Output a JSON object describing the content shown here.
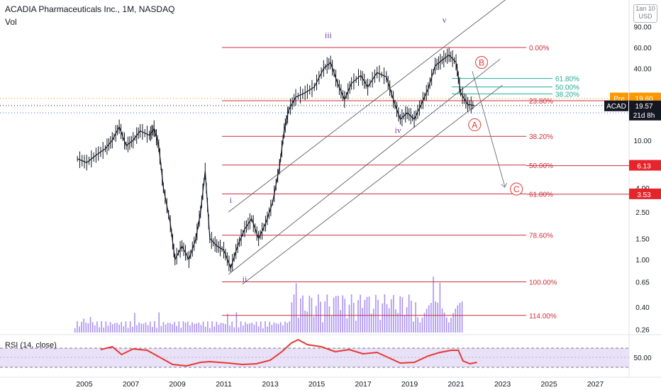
{
  "header": {
    "title": "ACADIA Pharmaceuticals Inc., 1M, NASDAQ",
    "sub": "Vol",
    "currency_top": "1an 10",
    "currency": "USD"
  },
  "rsi": {
    "title": "RSI (14, close)",
    "tick_label": "50.00"
  },
  "colors": {
    "fib": "#cc2f3c",
    "fib_teal": "#22ab94",
    "channel": "#5d606b",
    "volume": "#9c7ef2",
    "rsi_line": "#e53935",
    "rsi_band": "#e9e1f7",
    "pre_badge": "#ff9800",
    "price_badge": "#131722",
    "level_badge": "#e5242b",
    "wave_purple": "#6a3da7",
    "wave_red": "#e53935"
  },
  "chart_data": {
    "type": "candlestick",
    "yscale": "log",
    "y_ticks": [
      "90.00",
      "60.00",
      "40.00",
      "20.00",
      "10.00",
      "6.00",
      "4.00",
      "2.50",
      "1.50",
      "1.00",
      "0.65",
      "0.40",
      "0.26"
    ],
    "x_ticks": [
      "2005",
      "2007",
      "2009",
      "2011",
      "2013",
      "2015",
      "2017",
      "2019",
      "2021",
      "2023",
      "2025",
      "2027"
    ],
    "price_path": [
      [
        2004.7,
        7
      ],
      [
        2005.1,
        6.5
      ],
      [
        2005.5,
        7.5
      ],
      [
        2005.9,
        8.5
      ],
      [
        2006.2,
        10
      ],
      [
        2006.5,
        13
      ],
      [
        2006.8,
        9
      ],
      [
        2007.1,
        10
      ],
      [
        2007.4,
        12
      ],
      [
        2007.8,
        11
      ],
      [
        2008.0,
        12.5
      ],
      [
        2008.2,
        9
      ],
      [
        2008.4,
        4
      ],
      [
        2008.7,
        2
      ],
      [
        2008.9,
        1
      ],
      [
        2009.2,
        1.3
      ],
      [
        2009.5,
        1.0
      ],
      [
        2009.8,
        1.5
      ],
      [
        2010.0,
        2.5
      ],
      [
        2010.2,
        5.5
      ],
      [
        2010.4,
        1.5
      ],
      [
        2010.7,
        1.3
      ],
      [
        2011.0,
        1.2
      ],
      [
        2011.3,
        0.85
      ],
      [
        2011.6,
        1.3
      ],
      [
        2011.9,
        1.8
      ],
      [
        2012.2,
        2.2
      ],
      [
        2012.5,
        1.5
      ],
      [
        2012.8,
        2.0
      ],
      [
        2013.1,
        3.0
      ],
      [
        2013.4,
        6.0
      ],
      [
        2013.6,
        12
      ],
      [
        2013.8,
        18
      ],
      [
        2014.1,
        23
      ],
      [
        2014.5,
        25
      ],
      [
        2014.9,
        28
      ],
      [
        2015.3,
        40
      ],
      [
        2015.6,
        45
      ],
      [
        2015.9,
        30
      ],
      [
        2016.2,
        22
      ],
      [
        2016.5,
        30
      ],
      [
        2016.9,
        35
      ],
      [
        2017.2,
        28
      ],
      [
        2017.6,
        37
      ],
      [
        2018.0,
        34
      ],
      [
        2018.3,
        22
      ],
      [
        2018.6,
        15
      ],
      [
        2018.9,
        17
      ],
      [
        2019.2,
        15
      ],
      [
        2019.5,
        20
      ],
      [
        2019.8,
        27
      ],
      [
        2020.1,
        42
      ],
      [
        2020.4,
        47
      ],
      [
        2020.7,
        52
      ],
      [
        2021.0,
        45
      ],
      [
        2021.2,
        25
      ],
      [
        2021.5,
        20
      ],
      [
        2021.8,
        19.57
      ]
    ],
    "fib_levels": [
      {
        "label": "0.00%",
        "price": 60
      },
      {
        "label": "23.80%",
        "price": 21.5
      },
      {
        "label": "38.20%",
        "price": 10.8
      },
      {
        "label": "50.00%",
        "price": 6.2
      },
      {
        "label": "61.80%",
        "price": 3.55
      },
      {
        "label": "78.60%",
        "price": 1.6
      },
      {
        "label": "100.00%",
        "price": 0.65
      },
      {
        "label": "114.00%",
        "price": 0.34
      }
    ],
    "fib_small": [
      {
        "label": "61.80%",
        "price": 33
      },
      {
        "label": "50.00%",
        "price": 28
      },
      {
        "label": "38.20%",
        "price": 24.5
      }
    ],
    "waves": [
      {
        "label": "i",
        "x": 2011.3,
        "price": 3.0,
        "color": "wave_purple"
      },
      {
        "label": "ii",
        "x": 2011.9,
        "price": 0.65,
        "color": "wave_purple"
      },
      {
        "label": "iii",
        "x": 2015.5,
        "price": 72,
        "color": "wave_purple"
      },
      {
        "label": "iv",
        "x": 2018.5,
        "price": 11.5,
        "color": "wave_purple"
      },
      {
        "label": "v",
        "x": 2020.5,
        "price": 97,
        "color": "wave_purple"
      }
    ],
    "abc": [
      {
        "label": "A",
        "x": 2021.8,
        "price": 13.5
      },
      {
        "label": "B",
        "x": 2022.1,
        "price": 45
      },
      {
        "label": "C",
        "x": 2023.6,
        "price": 3.9
      }
    ],
    "price_labels": [
      {
        "text": "Pre",
        "value": "19.60",
        "kind": "pre",
        "price": 22.5
      },
      {
        "text": "ACAD",
        "value": "19.57",
        "sub": "21d 8h",
        "kind": "last",
        "price": 19.57
      },
      {
        "text": "",
        "value": "6.13",
        "kind": "level",
        "price": 6.13
      },
      {
        "text": "",
        "value": "3.53",
        "kind": "level",
        "price": 3.53
      }
    ]
  }
}
